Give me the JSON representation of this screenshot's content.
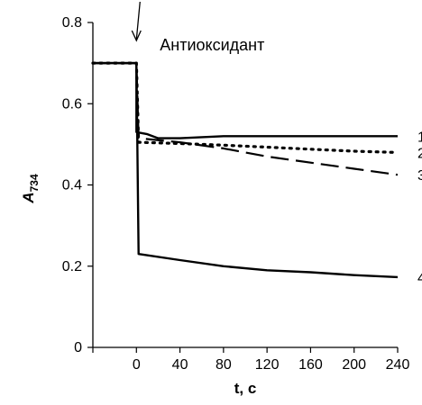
{
  "chart_data": {
    "type": "line",
    "xlabel": "t, c",
    "ylabel_main": "A",
    "ylabel_sub": "734",
    "xlim": [
      -40,
      240
    ],
    "ylim": [
      0,
      0.8
    ],
    "x_ticks": [
      0,
      40,
      80,
      120,
      160,
      200,
      240
    ],
    "x_tick_labels": [
      "0",
      "40",
      "80",
      "120",
      "160",
      "200",
      "240"
    ],
    "y_ticks": [
      0,
      0.2,
      0.4,
      0.6,
      0.8
    ],
    "y_tick_labels": [
      "0",
      "0.2",
      "0.4",
      "0.6",
      "0.8"
    ],
    "annotation": {
      "text": "Антиоксидант",
      "x": 0
    },
    "series": [
      {
        "label": "1",
        "style": "solid",
        "points": [
          [
            -40,
            0.7
          ],
          [
            0,
            0.7
          ],
          [
            0,
            0.53
          ],
          [
            10,
            0.525
          ],
          [
            20,
            0.515
          ],
          [
            40,
            0.515
          ],
          [
            80,
            0.52
          ],
          [
            120,
            0.52
          ],
          [
            160,
            0.52
          ],
          [
            200,
            0.52
          ],
          [
            240,
            0.52
          ]
        ]
      },
      {
        "label": "2",
        "style": "dotted",
        "points": [
          [
            -40,
            0.7
          ],
          [
            0,
            0.7
          ],
          [
            2,
            0.505
          ],
          [
            40,
            0.502
          ],
          [
            80,
            0.498
          ],
          [
            120,
            0.493
          ],
          [
            160,
            0.488
          ],
          [
            200,
            0.483
          ],
          [
            240,
            0.48
          ]
        ]
      },
      {
        "label": "3",
        "style": "dashed",
        "points": [
          [
            -40,
            0.7
          ],
          [
            0,
            0.7
          ],
          [
            2,
            0.515
          ],
          [
            40,
            0.505
          ],
          [
            80,
            0.49
          ],
          [
            120,
            0.47
          ],
          [
            160,
            0.455
          ],
          [
            200,
            0.44
          ],
          [
            240,
            0.425
          ]
        ]
      },
      {
        "label": "4",
        "style": "solid",
        "points": [
          [
            -40,
            0.7
          ],
          [
            0,
            0.7
          ],
          [
            2,
            0.23
          ],
          [
            40,
            0.215
          ],
          [
            80,
            0.2
          ],
          [
            120,
            0.19
          ],
          [
            160,
            0.185
          ],
          [
            200,
            0.178
          ],
          [
            240,
            0.173
          ]
        ]
      }
    ]
  }
}
